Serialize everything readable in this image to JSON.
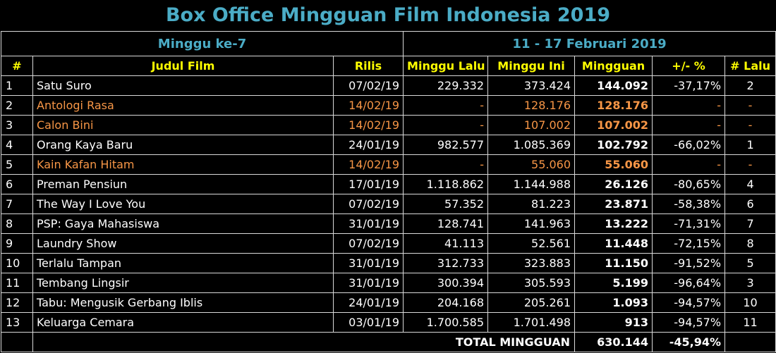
{
  "title": "Box Office Mingguan Film Indonesia 2019",
  "week_label": "Minggu ke-7",
  "date_range": "11 - 17 Februari 2019",
  "headers": [
    "#",
    "Judul Film",
    "Rilis",
    "Minggu Lalu",
    "Minggu Ini",
    "Mingguan",
    "+/- %",
    "# Lalu"
  ],
  "colors": {
    "title": "#4bacc6",
    "header": "#ffff00",
    "new_release": "#f79646"
  },
  "rows": [
    {
      "rank": "1",
      "film": "Satu Suro",
      "release": "07/02/19",
      "last_week": "229.332",
      "this_week": "373.424",
      "weekly": "144.092",
      "change": "-37,17%",
      "last_rank": "2",
      "new": false
    },
    {
      "rank": "2",
      "film": "Antologi Rasa",
      "release": "14/02/19",
      "last_week": "-",
      "this_week": "128.176",
      "weekly": "128.176",
      "change": "-",
      "last_rank": "-",
      "new": true
    },
    {
      "rank": "3",
      "film": "Calon Bini",
      "release": "14/02/19",
      "last_week": "-",
      "this_week": "107.002",
      "weekly": "107.002",
      "change": "-",
      "last_rank": "-",
      "new": true
    },
    {
      "rank": "4",
      "film": "Orang Kaya Baru",
      "release": "24/01/19",
      "last_week": "982.577",
      "this_week": "1.085.369",
      "weekly": "102.792",
      "change": "-66,02%",
      "last_rank": "1",
      "new": false
    },
    {
      "rank": "5",
      "film": "Kain Kafan Hitam",
      "release": "14/02/19",
      "last_week": "-",
      "this_week": "55.060",
      "weekly": "55.060",
      "change": "-",
      "last_rank": "-",
      "new": true
    },
    {
      "rank": "6",
      "film": "Preman Pensiun",
      "release": "17/01/19",
      "last_week": "1.118.862",
      "this_week": "1.144.988",
      "weekly": "26.126",
      "change": "-80,65%",
      "last_rank": "4",
      "new": false
    },
    {
      "rank": "7",
      "film": "The Way I Love You",
      "release": "07/02/19",
      "last_week": "57.352",
      "this_week": "81.223",
      "weekly": "23.871",
      "change": "-58,38%",
      "last_rank": "6",
      "new": false
    },
    {
      "rank": "8",
      "film": "PSP: Gaya Mahasiswa",
      "release": "31/01/19",
      "last_week": "128.741",
      "this_week": "141.963",
      "weekly": "13.222",
      "change": "-71,31%",
      "last_rank": "7",
      "new": false
    },
    {
      "rank": "9",
      "film": "Laundry Show",
      "release": "07/02/19",
      "last_week": "41.113",
      "this_week": "52.561",
      "weekly": "11.448",
      "change": "-72,15%",
      "last_rank": "8",
      "new": false
    },
    {
      "rank": "10",
      "film": "Terlalu Tampan",
      "release": "31/01/19",
      "last_week": "312.733",
      "this_week": "323.883",
      "weekly": "11.150",
      "change": "-91,52%",
      "last_rank": "5",
      "new": false
    },
    {
      "rank": "11",
      "film": "Tembang Lingsir",
      "release": "31/01/19",
      "last_week": "300.394",
      "this_week": "305.593",
      "weekly": "5.199",
      "change": "-96,64%",
      "last_rank": "3",
      "new": false
    },
    {
      "rank": "12",
      "film": "Tabu: Mengusik Gerbang Iblis",
      "release": "24/01/19",
      "last_week": "204.168",
      "this_week": "205.261",
      "weekly": "1.093",
      "change": "-94,57%",
      "last_rank": "10",
      "new": false
    },
    {
      "rank": "13",
      "film": "Keluarga Cemara",
      "release": "03/01/19",
      "last_week": "1.700.585",
      "this_week": "1.701.498",
      "weekly": "913",
      "change": "-94,57%",
      "last_rank": "11",
      "new": false
    }
  ],
  "total": {
    "label": "TOTAL MINGGUAN",
    "value": "630.144",
    "change": "-45,94%"
  }
}
